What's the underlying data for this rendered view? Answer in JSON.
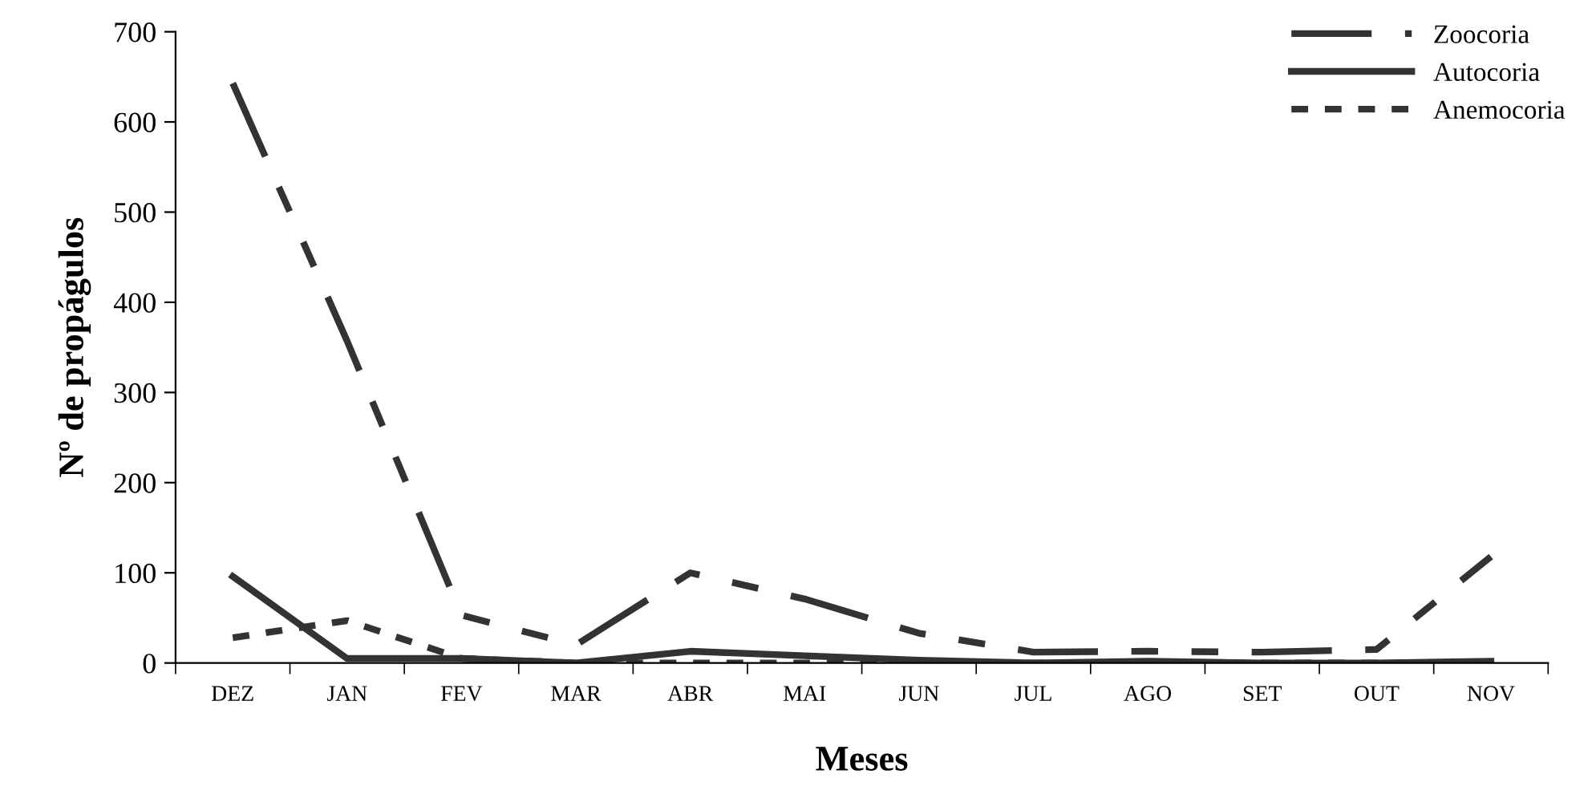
{
  "chart_data": {
    "type": "line",
    "xlabel": "Meses",
    "ylabel": "Nº de propágulos",
    "categories": [
      "DEZ",
      "JAN",
      "FEV",
      "MAR",
      "ABR",
      "MAI",
      "JUN",
      "JUL",
      "AGO",
      "SET",
      "OUT",
      "NOV"
    ],
    "series": [
      {
        "name": "Zoocoria",
        "color": "#333333",
        "line_style": "dashed",
        "values": [
          643,
          357,
          53,
          20,
          100,
          71,
          33,
          12,
          13,
          12,
          15,
          118
        ]
      },
      {
        "name": "Autocoria",
        "color": "#333333",
        "line_style": "solid",
        "values": [
          96,
          5,
          5,
          0,
          13,
          8,
          3,
          0,
          2,
          0,
          0,
          2
        ]
      },
      {
        "name": "Anemocoria",
        "color": "#333333",
        "line_style": "dotted",
        "values": [
          28,
          47,
          5,
          0,
          0,
          0,
          0,
          0,
          0,
          0,
          0,
          0
        ]
      }
    ],
    "ylim": [
      0,
      700
    ],
    "yticks": [
      0,
      100,
      200,
      300,
      400,
      500,
      600,
      700
    ],
    "grid": false,
    "legend": "top right",
    "marker": "none"
  }
}
